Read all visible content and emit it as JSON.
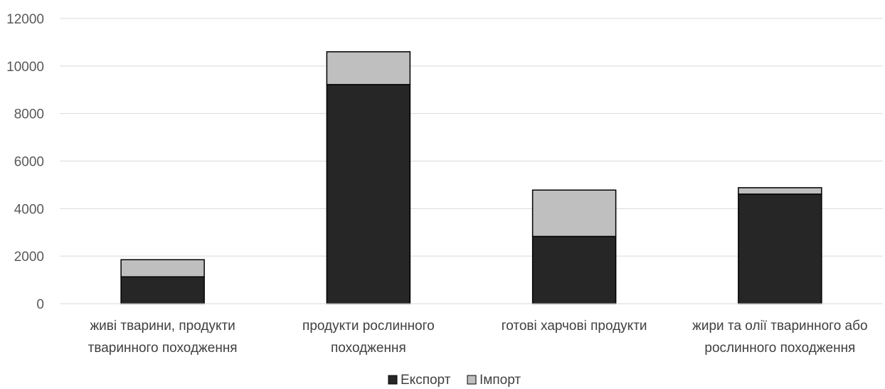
{
  "chart_data": {
    "type": "bar",
    "stacked": true,
    "categories": [
      [
        "живі тварини, продукти",
        "тваринного походження"
      ],
      [
        "продукти рослинного",
        "походження"
      ],
      [
        "готові харчові продукти"
      ],
      [
        "жири та олії тваринного або",
        "рослинного походження"
      ]
    ],
    "series": [
      {
        "name": "Експорт",
        "values": [
          1130,
          9220,
          2830,
          4610
        ],
        "color": "#262626"
      },
      {
        "name": "Імпорт",
        "values": [
          720,
          1380,
          1950,
          270
        ],
        "color": "#bfbfbf"
      }
    ],
    "ylim": [
      0,
      12000
    ],
    "yticks": [
      0,
      2000,
      4000,
      6000,
      8000,
      10000,
      12000
    ],
    "grid": true,
    "legend_position": "bottom-center",
    "colors": {
      "gridline": "#d9d9d9",
      "bar_outline": "#000000",
      "axis": "#d9d9d9"
    }
  }
}
